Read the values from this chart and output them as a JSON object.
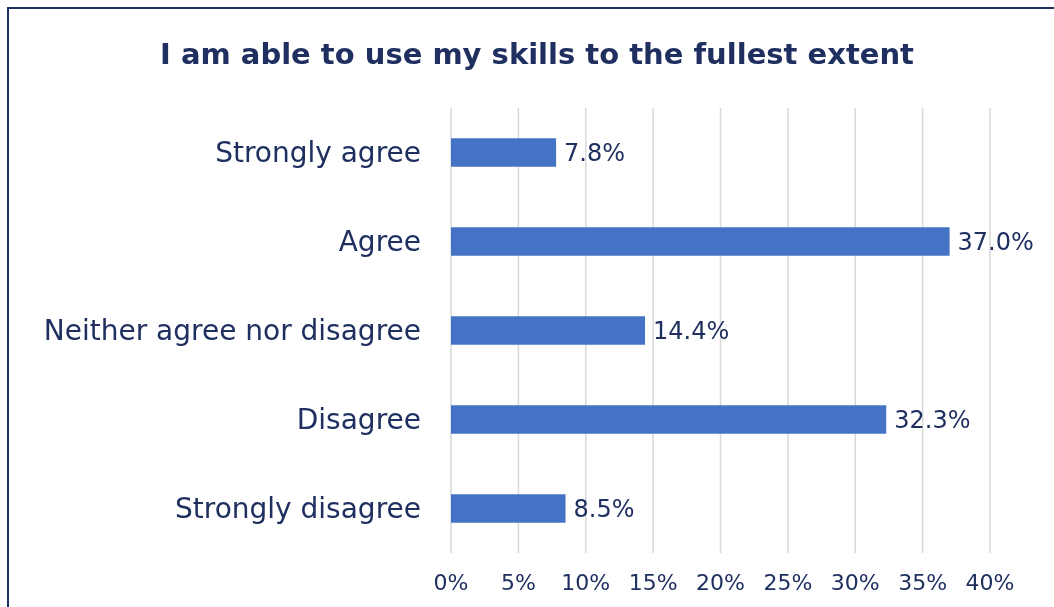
{
  "chart_data": {
    "type": "bar",
    "orientation": "horizontal",
    "title": "I am able to use my skills to the fullest extent",
    "categories": [
      "Strongly agree",
      "Agree",
      "Neither agree nor disagree",
      "Disagree",
      "Strongly disagree"
    ],
    "values": [
      7.8,
      37.0,
      14.4,
      32.3,
      8.5
    ],
    "value_labels": [
      "7.8%",
      "37.0%",
      "14.4%",
      "32.3%",
      "8.5%"
    ],
    "color": "#4472c4",
    "xlim": [
      0,
      40
    ],
    "xticks": [
      {
        "value": 0,
        "label": "0%"
      },
      {
        "value": 5,
        "label": "5%"
      },
      {
        "value": 10,
        "label": "10%"
      },
      {
        "value": 15,
        "label": "15%"
      },
      {
        "value": 20,
        "label": "20%"
      },
      {
        "value": 25,
        "label": "25%"
      },
      {
        "value": 30,
        "label": "30%"
      },
      {
        "value": 35,
        "label": "35%"
      },
      {
        "value": 40,
        "label": "40%"
      }
    ],
    "grid": "x"
  }
}
